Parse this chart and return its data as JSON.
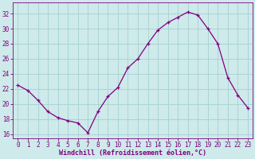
{
  "x": [
    0,
    1,
    2,
    3,
    4,
    5,
    6,
    7,
    8,
    9,
    10,
    11,
    12,
    13,
    14,
    15,
    16,
    17,
    18,
    19,
    20,
    21,
    22,
    23
  ],
  "y": [
    22.5,
    21.8,
    20.5,
    19.0,
    18.2,
    17.8,
    17.5,
    16.2,
    19.0,
    21.0,
    22.2,
    24.8,
    26.0,
    28.0,
    29.8,
    30.8,
    31.5,
    32.2,
    31.8,
    30.0,
    28.0,
    23.5,
    21.2,
    19.5
  ],
  "line_color": "#800080",
  "marker": "+",
  "xlabel": "Windchill (Refroidissement éolien,°C)",
  "ylabel_ticks": [
    16,
    18,
    20,
    22,
    24,
    26,
    28,
    30,
    32
  ],
  "ylim": [
    15.5,
    33.5
  ],
  "xlim": [
    -0.5,
    23.5
  ],
  "bg_color": "#ceeaea",
  "grid_color": "#aad4d4",
  "tick_color": "#800080",
  "label_color": "#800080",
  "tick_fontsize": 5.5,
  "xlabel_fontsize": 6.0
}
